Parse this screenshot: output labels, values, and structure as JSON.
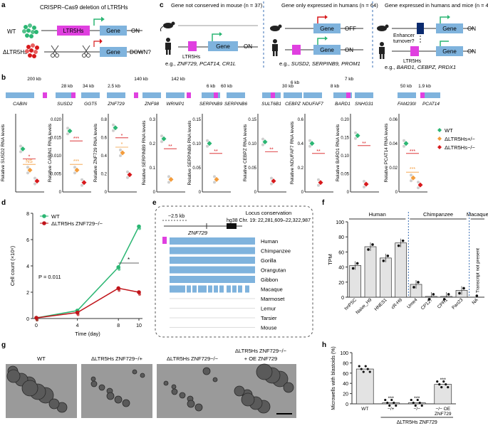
{
  "panels": {
    "a": "a",
    "b": "b",
    "c": "c",
    "d": "d",
    "e": "e",
    "f": "f",
    "g": "g",
    "h": "h"
  },
  "a": {
    "title": "CRISPR–Cas9 deletion of LTR5Hs",
    "wt": "WT",
    "del": "ΔLTR5Hs",
    "element": "LTR5Hs",
    "gene": "Gene",
    "on": "ON",
    "down": "DOWN?"
  },
  "c": {
    "headers": [
      "Gene not conserved in mouse (n = 37)",
      "Gene only expressed in humans (n = 64)",
      "Gene expressed in humans and mice (n = 43)"
    ],
    "gene": "Gene",
    "ltr": "LTR5Hs",
    "on": "ON",
    "off": "OFF",
    "enhancer": "Enhancer",
    "turnover": "turnover?",
    "examples": [
      {
        "prefix": "e.g., ",
        "names": "ZNF729, PCAT14, CR1L"
      },
      {
        "prefix": "e.g., ",
        "names": "SUSD2, SERPINB9, PROM1"
      },
      {
        "prefix": "e.g., ",
        "names": "BARD1, CEBPZ, PRDX1"
      }
    ]
  },
  "b": {
    "scale_labels": [
      "200 kb",
      "28 kb",
      "34 kb",
      "2.5 kb",
      "140 kb",
      "142 kb",
      "6 kb",
      "60 kb",
      "30 kb",
      "6 kb",
      "7 kb",
      "8 kb",
      "50 kb",
      "1.9 kb"
    ],
    "track_genes": [
      "CABIN",
      "SUSD2",
      "GGT5",
      "ZNF729",
      "ZNF98",
      "WRNIP1",
      "SERPINB9",
      "SERPINB6",
      "SULT6B1",
      "CEBPZ",
      "NDUFAF7",
      "BARD1",
      "SNHG31",
      "FAM230I",
      "PCAT14"
    ],
    "ylabel_prefix": "Relative ",
    "ylabel_suffix": " RNA levels",
    "legend": [
      "WT",
      "ΔLTR5Hs+/−",
      "ΔLTR5Hs−/−"
    ],
    "legend_colors": [
      "#2bb673",
      "#f39c3c",
      "#d7191c"
    ]
  },
  "b_plots": [
    {
      "gene": "SUSD2",
      "ticks": [],
      "sig1": "*",
      "sig2": "NS",
      "wt": 0.55,
      "het": 0.28,
      "ko": 0.14,
      "ymax": 1
    },
    {
      "gene": "CABIN1",
      "ticks": [
        "0.020",
        "0.015",
        "0.010",
        "0.005",
        "0"
      ],
      "sig1": "***",
      "sig2": "***",
      "wt": 0.78,
      "het": 0.28,
      "ko": 0.12,
      "ymax": 1
    },
    {
      "gene": "ZNF729",
      "ticks": [
        "0.8",
        "0.6",
        "0.4",
        "0.2",
        "0"
      ],
      "sig1": "*",
      "sig2": "*",
      "wt": 0.82,
      "het": 0.5,
      "ko": 0.22,
      "ymax": 1
    },
    {
      "gene": "SERPINB9",
      "ticks": [
        "0.3",
        "0.2",
        "0.1",
        "0"
      ],
      "sig1": "**",
      "sig2": "",
      "wt": 0.68,
      "het": 0.16,
      "ko": null,
      "ymax": 1
    },
    {
      "gene": "SERPINB6",
      "ticks": [
        "0.15",
        "0.10",
        "0.05",
        "0"
      ],
      "sig1": "**",
      "sig2": "",
      "wt": 0.62,
      "het": 0.16,
      "ko": null,
      "ymax": 1
    },
    {
      "gene": "CEBPZ",
      "ticks": [
        "0.15",
        "0.10",
        "0.05",
        "0"
      ],
      "sig1": "**",
      "sig2": "",
      "wt": 0.64,
      "het": null,
      "ko": 0.14,
      "ymax": 1
    },
    {
      "gene": "NDUFAF7",
      "ticks": [
        "0.6",
        "0.4",
        "0.2",
        "0"
      ],
      "sig1": "**",
      "sig2": "",
      "wt": 0.62,
      "het": null,
      "ko": 0.12,
      "ymax": 1
    },
    {
      "gene": "BARD1",
      "ticks": [
        "0.20",
        "0.15",
        "0.10",
        "0.05",
        "0"
      ],
      "sig1": "**",
      "sig2": "",
      "wt": 0.72,
      "het": null,
      "ko": 0.1,
      "ymax": 1
    },
    {
      "gene": "PCAT14",
      "ticks": [
        "0.06",
        "0.04",
        "0.02",
        "0"
      ],
      "sig1": "***",
      "sig2": "***",
      "wt": 0.62,
      "het": 0.18,
      "ko": 0.09,
      "ymax": 1
    }
  ],
  "chart_data": [
    {
      "type": "line",
      "panel": "d",
      "xlabel": "Time (day)",
      "ylabel": "Cell count (×10⁶)",
      "x": [
        0,
        4,
        8,
        10
      ],
      "ylim": [
        0,
        8
      ],
      "xticks": [
        "0",
        "4",
        "8",
        "10"
      ],
      "yticks": [
        "0",
        "2",
        "4",
        "6",
        "8"
      ],
      "series": [
        {
          "name": "WT",
          "color": "#2bb673",
          "values": [
            0.05,
            0.6,
            3.9,
            7.0
          ]
        },
        {
          "name": "ΔLTR5Hs ZNF729−/−",
          "color": "#c0141a",
          "values": [
            0.05,
            0.45,
            2.3,
            2.0
          ]
        }
      ],
      "annotations": [
        "P = 0.011",
        "*"
      ]
    },
    {
      "type": "bar",
      "panel": "f",
      "ylabel": "TPM",
      "ylim": [
        0,
        100
      ],
      "yticks": [
        "0",
        "20",
        "40",
        "60",
        "80",
        "100"
      ],
      "categories": [
        "hnPSC",
        "Naive_H9",
        "HNES1",
        "cR-H9",
        "Ume4",
        "CP127",
        "CPR1",
        "Pan23",
        "NA"
      ],
      "values": [
        42,
        67,
        52,
        72,
        17,
        1,
        1,
        9,
        0
      ],
      "groups": [
        "Human",
        "Chimpanzee",
        "Macaque"
      ],
      "note": "Transcript not present"
    },
    {
      "type": "bar",
      "panel": "h",
      "ylabel": "Microwells with blastoids (%)",
      "ylim": [
        0,
        100
      ],
      "yticks": [
        "0",
        "20",
        "40",
        "60",
        "80",
        "100"
      ],
      "categories": [
        "WT",
        "−/+",
        "−/−",
        "−/− OE ZNF729"
      ],
      "values": [
        68,
        2,
        2,
        38
      ],
      "significance": [
        "",
        "***",
        "***",
        "***"
      ],
      "group_label": "ΔLTR5Hs ZNF729"
    }
  ],
  "e": {
    "scale": "~2.5 kb",
    "gene": "ZNF729",
    "locus": "hg38 Chr. 19: 22,281,609–22,322,987",
    "conservation": "Locus conservation",
    "species": [
      "Human",
      "Chimpanzee",
      "Gorilla",
      "Orangutan",
      "Gibbon",
      "Macaque",
      "Marmoset",
      "Lemur",
      "Tarsier",
      "Mouse"
    ]
  },
  "g": {
    "labels": [
      "WT",
      "ΔLTR5Hs ZNF729−/+",
      "ΔLTR5Hs ZNF729−/−",
      "ΔLTR5Hs ZNF729−/− + OE ZNF729"
    ]
  },
  "colors": {
    "gene": "#7fb3dd",
    "ltr": "#e040e0",
    "wt": "#2bb673",
    "het": "#f39c3c",
    "ko": "#d7191c",
    "bar": "#e3e3e3"
  }
}
